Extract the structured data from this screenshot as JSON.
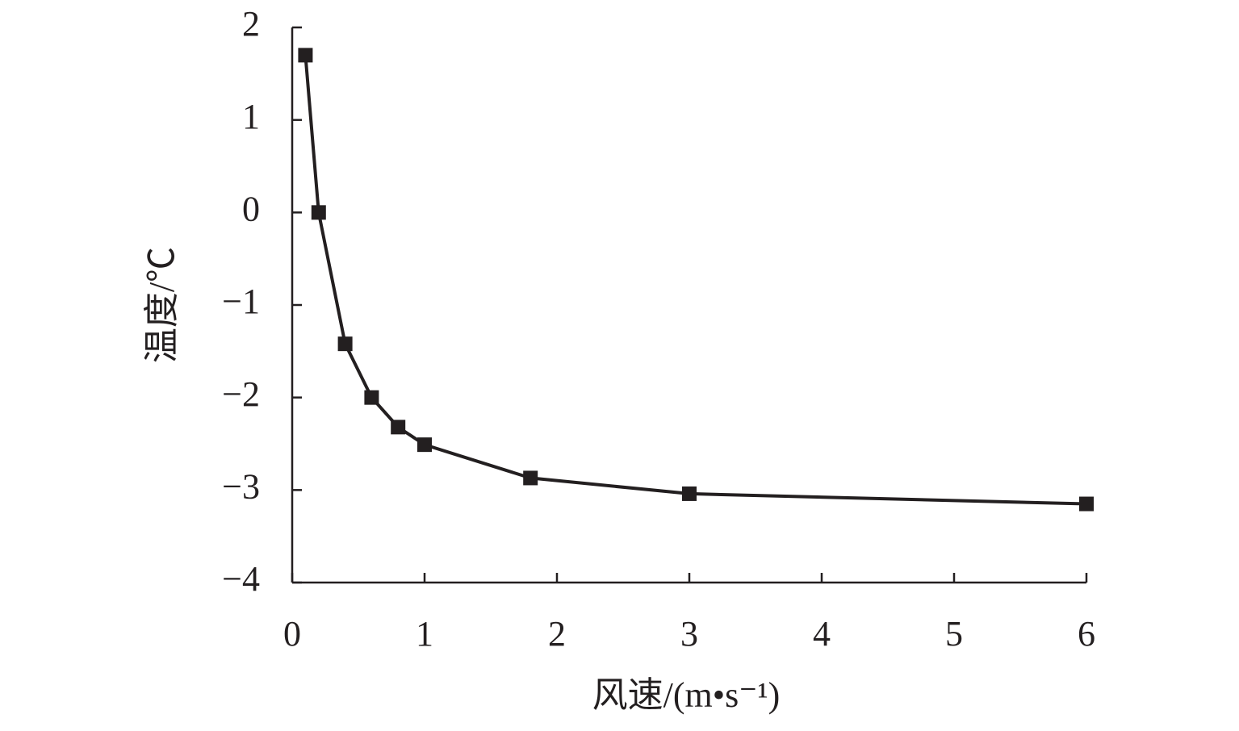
{
  "chart_data": {
    "type": "line",
    "x_label": "风速/(m•s⁻¹)",
    "y_label": "温度/℃",
    "x": [
      0.1,
      0.2,
      0.4,
      0.6,
      0.8,
      1,
      1.8,
      3,
      6
    ],
    "series": [
      {
        "color": "#231f20",
        "values": [
          1.7,
          0,
          -1.42,
          -2.0,
          -2.32,
          -2.51,
          -2.87,
          -3.04,
          -3.15
        ]
      }
    ],
    "xlim": [
      0,
      6
    ],
    "xticks": [
      0,
      1,
      2,
      3,
      4,
      5,
      6
    ],
    "ylim": [
      -4,
      2
    ],
    "yticks": [
      {
        "value": -4,
        "label": "−4"
      },
      {
        "value": -3,
        "label": "−3"
      },
      {
        "value": -2,
        "label": "−2"
      },
      {
        "value": -1,
        "label": "−1"
      },
      0,
      1,
      2
    ],
    "marker": "square"
  }
}
